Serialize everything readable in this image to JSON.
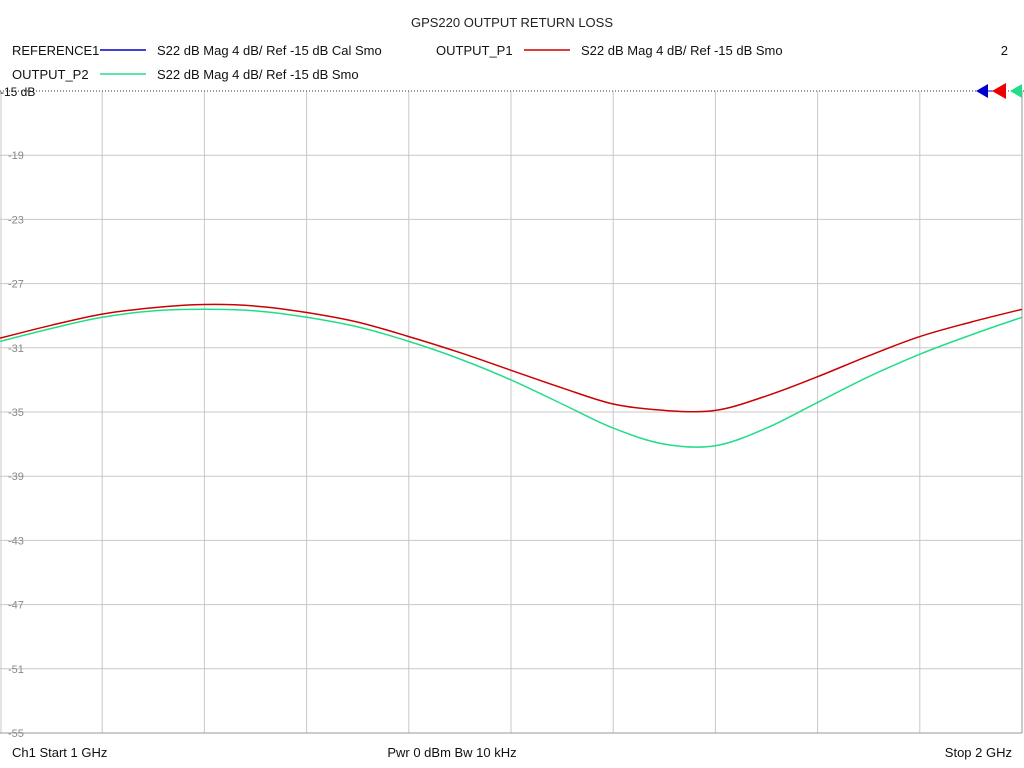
{
  "chart_data": {
    "type": "line",
    "title": "GPS220 OUTPUT RETURN LOSS",
    "legend": [
      {
        "name": "REFERENCE1",
        "desc": "S22  dB Mag  4 dB/ Ref -15 dB  Cal Smo",
        "color": "#0000cc"
      },
      {
        "name": "OUTPUT_P1",
        "desc": "S22  dB Mag  4 dB/ Ref -15 dB  Smo",
        "color": "#cc0000"
      },
      {
        "name": "OUTPUT_P2",
        "desc": "S22  dB Mag  4 dB/ Ref -15 dB  Smo",
        "color": "#22dd88"
      }
    ],
    "channel_number": "2",
    "ref_label": "-15 dB",
    "y_ticks": [
      "-19",
      "-23",
      "-27",
      "-31",
      "-35",
      "-39",
      "-43",
      "-47",
      "-51",
      "-55"
    ],
    "ylim": [
      -55,
      -15
    ],
    "xlim": [
      1,
      2
    ],
    "x_unit": "GHz",
    "series": [
      {
        "name": "OUTPUT_P1",
        "color": "#cc0000",
        "x": [
          1.0,
          1.05,
          1.1,
          1.15,
          1.2,
          1.25,
          1.3,
          1.35,
          1.4,
          1.45,
          1.5,
          1.55,
          1.6,
          1.65,
          1.7,
          1.75,
          1.8,
          1.85,
          1.9,
          1.95,
          2.0
        ],
        "y": [
          -30.4,
          -29.6,
          -28.9,
          -28.5,
          -28.3,
          -28.4,
          -28.8,
          -29.4,
          -30.3,
          -31.3,
          -32.4,
          -33.5,
          -34.5,
          -34.9,
          -34.9,
          -34.0,
          -32.8,
          -31.5,
          -30.3,
          -29.4,
          -28.6
        ]
      },
      {
        "name": "OUTPUT_P2",
        "color": "#22dd88",
        "x": [
          1.0,
          1.05,
          1.1,
          1.15,
          1.2,
          1.25,
          1.3,
          1.35,
          1.4,
          1.45,
          1.5,
          1.55,
          1.6,
          1.65,
          1.7,
          1.75,
          1.8,
          1.85,
          1.9,
          1.95,
          2.0
        ],
        "y": [
          -30.6,
          -29.8,
          -29.1,
          -28.7,
          -28.6,
          -28.7,
          -29.1,
          -29.7,
          -30.6,
          -31.7,
          -33.0,
          -34.5,
          -36.0,
          -37.0,
          -37.1,
          -36.0,
          -34.4,
          -32.8,
          -31.4,
          -30.2,
          -29.1
        ]
      }
    ]
  },
  "footer": {
    "start": "Ch1  Start  1 GHz",
    "middle": "Pwr  0 dBm  Bw  10 kHz",
    "stop": "Stop  2 GHz"
  }
}
